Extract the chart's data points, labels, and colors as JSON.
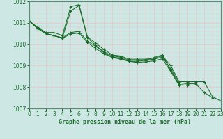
{
  "xlabel": "Graphe pression niveau de la mer (hPa)",
  "ylim": [
    1007,
    1012
  ],
  "xlim": [
    0,
    23
  ],
  "yticks": [
    1007,
    1008,
    1009,
    1010,
    1011,
    1012
  ],
  "xticks": [
    0,
    1,
    2,
    3,
    4,
    5,
    6,
    7,
    8,
    9,
    10,
    11,
    12,
    13,
    14,
    15,
    16,
    17,
    18,
    19,
    20,
    21,
    22,
    23
  ],
  "background_color": "#cde8e4",
  "grid_color_v": "#e8c8c8",
  "grid_color_h": "#e8c8c8",
  "line_color": "#1a6b2a",
  "lines": [
    [
      1011.1,
      1010.8,
      1010.55,
      1010.55,
      1010.4,
      1011.75,
      1011.85,
      1010.35,
      1010.05,
      1009.75,
      1009.5,
      1009.45,
      1009.3,
      1009.3,
      1009.3,
      1009.35,
      1009.45,
      1009.0,
      1008.25,
      1008.25,
      1008.25,
      1008.25,
      1007.55,
      1007.35
    ],
    [
      1011.1,
      1010.75,
      1010.5,
      1010.4,
      1010.3,
      1010.55,
      1010.6,
      1010.15,
      1009.9,
      1009.65,
      1009.45,
      1009.4,
      1009.25,
      1009.25,
      1009.25,
      1009.3,
      1009.4,
      1008.85,
      1008.2,
      1008.15,
      1008.15,
      1007.75,
      1007.5,
      null
    ],
    [
      1011.1,
      1010.75,
      1010.5,
      1010.4,
      1010.3,
      1011.55,
      1011.8,
      1010.3,
      1009.95,
      1009.6,
      1009.4,
      1009.35,
      1009.2,
      1009.2,
      1009.25,
      1009.38,
      1009.5,
      1008.78,
      1008.12,
      1008.08,
      null,
      null,
      null,
      null
    ],
    [
      1011.1,
      1010.75,
      1010.5,
      1010.4,
      1010.28,
      1010.48,
      1010.52,
      1010.08,
      1009.8,
      1009.55,
      1009.38,
      1009.3,
      1009.2,
      1009.15,
      1009.18,
      1009.22,
      1009.32,
      1008.72,
      1008.08,
      null,
      null,
      null,
      null,
      null
    ]
  ],
  "tick_fontsize": 5.5,
  "xlabel_fontsize": 6.0,
  "tick_color": "#1a6b2a",
  "spine_color": "#5a8a70"
}
